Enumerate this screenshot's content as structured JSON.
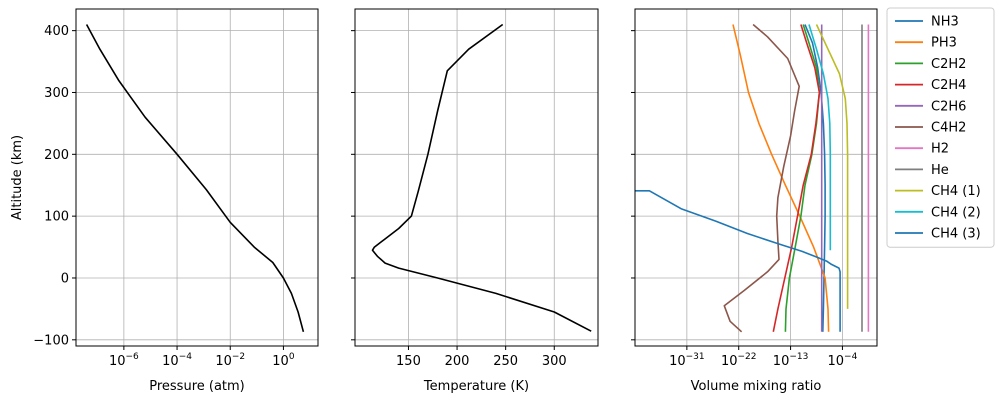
{
  "chart_data": [
    {
      "type": "line",
      "xlabel": "Pressure (atm)",
      "ylabel": "Altitude (km)",
      "xscale": "log",
      "xlim_exp": [
        -7.8,
        1.3
      ],
      "ylim": [
        -110,
        435
      ],
      "xticks": [
        {
          "exp": -6,
          "label": "10",
          "sup": "−6"
        },
        {
          "exp": -4,
          "label": "10",
          "sup": "−4"
        },
        {
          "exp": -2,
          "label": "10",
          "sup": "−2"
        },
        {
          "exp": 0,
          "label": "10",
          "sup": "0"
        }
      ],
      "yticks": [
        {
          "v": -100,
          "label": "−100"
        },
        {
          "v": 0,
          "label": "0"
        },
        {
          "v": 100,
          "label": "100"
        },
        {
          "v": 200,
          "label": "200"
        },
        {
          "v": 300,
          "label": "300"
        },
        {
          "v": 400,
          "label": "400"
        }
      ],
      "grid": true,
      "series": [
        {
          "color": "#000000",
          "x_exp": [
            -7.4,
            -6.9,
            -6.2,
            -5.2,
            -4.0,
            -2.9,
            -2.0,
            -1.1,
            -0.4,
            0.0,
            0.3,
            0.55,
            0.75
          ],
          "y": [
            410,
            370,
            320,
            260,
            200,
            143,
            90,
            50,
            25,
            0,
            -25,
            -55,
            -87
          ]
        }
      ]
    },
    {
      "type": "line",
      "xlabel": "Temperature (K)",
      "xlim": [
        95,
        345
      ],
      "ylim": [
        -110,
        435
      ],
      "xticks": [
        {
          "v": 150,
          "label": "150"
        },
        {
          "v": 200,
          "label": "200"
        },
        {
          "v": 250,
          "label": "250"
        },
        {
          "v": 300,
          "label": "300"
        }
      ],
      "yticks": [
        {
          "v": -100
        },
        {
          "v": 0
        },
        {
          "v": 100
        },
        {
          "v": 200
        },
        {
          "v": 300
        },
        {
          "v": 400
        }
      ],
      "grid": true,
      "series": [
        {
          "color": "#000000",
          "x": [
            247,
            212,
            190,
            180,
            170,
            160,
            153,
            140,
            125,
            115,
            113,
            118,
            126,
            140,
            180,
            240,
            300,
            338
          ],
          "y": [
            410,
            370,
            335,
            270,
            200,
            140,
            100,
            80,
            62,
            50,
            45,
            35,
            24,
            16,
            0,
            -25,
            -55,
            -86
          ]
        }
      ]
    },
    {
      "type": "line",
      "xlabel": "Volume mixing ratio",
      "xscale": "log",
      "xlim_exp": [
        -40,
        2
      ],
      "ylim": [
        -110,
        435
      ],
      "xticks": [
        {
          "exp": -31,
          "label": "10",
          "sup": "−31"
        },
        {
          "exp": -22,
          "label": "10",
          "sup": "−22"
        },
        {
          "exp": -13,
          "label": "10",
          "sup": "−13"
        },
        {
          "exp": -4,
          "label": "10",
          "sup": "−4"
        }
      ],
      "yticks": [
        {
          "v": -100
        },
        {
          "v": 0
        },
        {
          "v": 100
        },
        {
          "v": 200
        },
        {
          "v": 300
        },
        {
          "v": 400
        }
      ],
      "grid": true,
      "legend_position": "outside-right",
      "series": [
        {
          "name": "NH3",
          "color": "#1f77b4",
          "x_exp": [
            -10.5,
            -9.2,
            -8.3,
            -7.7,
            -7.3,
            -7.1,
            -7.0,
            -7.0,
            -7.1,
            -7.2,
            -7.3,
            -7.4
          ],
          "y": [
            410,
            380,
            340,
            300,
            250,
            200,
            150,
            100,
            50,
            0,
            -50,
            -87
          ]
        },
        {
          "name": "PH3",
          "color": "#ff7f0e",
          "x_exp": [
            -23.0,
            -21.7,
            -20.3,
            -18.5,
            -16.3,
            -13.9,
            -11.4,
            -9.0,
            -7.0,
            -6.5,
            -6.4
          ],
          "y": [
            410,
            360,
            300,
            250,
            200,
            150,
            100,
            50,
            0,
            -50,
            -87
          ]
        },
        {
          "name": "C2H2",
          "color": "#2ca02c",
          "x_exp": [
            -10.8,
            -9.8,
            -8.5,
            -8.0,
            -8.5,
            -9.3,
            -10.5,
            -11.2,
            -12.2,
            -13.2,
            -13.8,
            -13.9
          ],
          "y": [
            410,
            380,
            340,
            300,
            250,
            200,
            150,
            100,
            50,
            0,
            -50,
            -87
          ]
        },
        {
          "name": "C2H4",
          "color": "#d62728",
          "x_exp": [
            -11.2,
            -10.2,
            -8.8,
            -8.0,
            -8.6,
            -9.4,
            -10.8,
            -11.8,
            -12.8,
            -14.0,
            -15.2,
            -16.0
          ],
          "y": [
            410,
            380,
            340,
            300,
            250,
            200,
            150,
            100,
            50,
            0,
            -50,
            -87
          ]
        },
        {
          "name": "C2H6",
          "color": "#9467bd",
          "x_exp": [
            -7.6,
            -7.6,
            -7.6,
            -7.6,
            -7.6,
            -7.6,
            -7.6,
            -7.6,
            -7.6,
            -7.6,
            -7.6
          ],
          "y": [
            410,
            350,
            300,
            250,
            200,
            150,
            100,
            50,
            0,
            -50,
            -87
          ]
        },
        {
          "name": "C4H2",
          "color": "#8c564b",
          "x_exp": [
            -19.5,
            -17.0,
            -13.5,
            -11.5,
            -12.3,
            -13.0,
            -14.2,
            -15.2,
            -15.4,
            -15.2,
            -15.0,
            -17.0,
            -21.0,
            -24.5,
            -23.5,
            -21.5
          ],
          "y": [
            410,
            390,
            355,
            310,
            270,
            230,
            180,
            130,
            100,
            60,
            30,
            10,
            -20,
            -45,
            -70,
            -87
          ]
        },
        {
          "name": "H2",
          "color": "#e377c2",
          "x_exp": [
            0.5,
            0.5,
            0.5,
            0.5,
            0.5,
            0.5,
            0.5,
            0.5,
            0.5,
            0.5,
            0.5
          ],
          "y": [
            410,
            350,
            300,
            250,
            200,
            150,
            100,
            50,
            0,
            -50,
            -87
          ]
        },
        {
          "name": "He",
          "color": "#7f7f7f",
          "x_exp": [
            -0.6,
            -0.6,
            -0.6,
            -0.6,
            -0.6,
            -0.6,
            -0.6,
            -0.6,
            -0.6,
            -0.6,
            -0.6
          ],
          "y": [
            410,
            350,
            300,
            250,
            200,
            150,
            100,
            50,
            0,
            -50,
            -87
          ]
        },
        {
          "name": "CH4 (1)",
          "color": "#bcbd22",
          "x_exp": [
            -8.5,
            -6.5,
            -4.5,
            -3.5,
            -3.2,
            -3.1,
            -3.1,
            -3.1,
            -3.1,
            -3.1,
            -3.1
          ],
          "y": [
            410,
            370,
            330,
            290,
            250,
            200,
            150,
            100,
            50,
            0,
            -50
          ]
        },
        {
          "name": "CH4 (2)",
          "color": "#17becf",
          "x_exp": [
            -9.8,
            -8.5,
            -7.3,
            -6.5,
            -6.2,
            -6.1,
            -6.1,
            -6.1,
            -6.1
          ],
          "y": [
            410,
            370,
            330,
            290,
            250,
            200,
            150,
            100,
            45
          ]
        },
        {
          "name": "CH4 (3)",
          "color": "#1f77b4",
          "x_exp": [
            -40.0,
            -37.5,
            -32.0,
            -26.0,
            -20.5,
            -15.0,
            -11.0,
            -8.5,
            -6.7,
            -5.9,
            -4.6,
            -4.4,
            -4.4,
            -4.4,
            -4.4
          ],
          "y": [
            141,
            141,
            112,
            92,
            72,
            55,
            43,
            34,
            27,
            22,
            16,
            10,
            0,
            -50,
            -87
          ]
        }
      ]
    }
  ]
}
